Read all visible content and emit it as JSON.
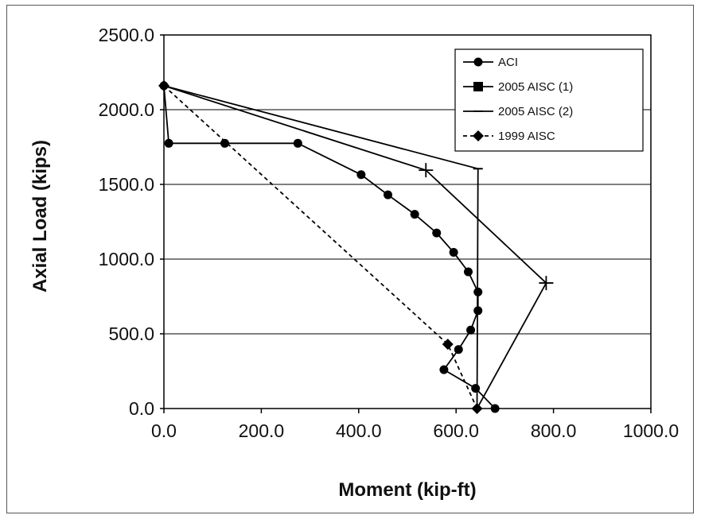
{
  "chart_data": {
    "type": "line",
    "xlabel": "Moment (kip-ft)",
    "ylabel": "Axial Load (kips)",
    "xlim": [
      0,
      1000
    ],
    "ylim": [
      0,
      2500
    ],
    "xticks": [
      "0.0",
      "200.0",
      "400.0",
      "600.0",
      "800.0",
      "1000.0"
    ],
    "yticks": [
      "0.0",
      "500.0",
      "1000.0",
      "1500.0",
      "2000.0",
      "2500.0"
    ],
    "grid": "horizontal",
    "legend_position": "top-right",
    "series": [
      {
        "name": "ACI",
        "color": "#000000",
        "line": "solid",
        "marker": "circle",
        "points": [
          [
            0,
            2160
          ],
          [
            10,
            1775
          ],
          [
            125,
            1775
          ],
          [
            275,
            1775
          ],
          [
            405,
            1565
          ],
          [
            460,
            1430
          ],
          [
            515,
            1300
          ],
          [
            560,
            1175
          ],
          [
            595,
            1045
          ],
          [
            625,
            915
          ],
          [
            645,
            780
          ],
          [
            645,
            655
          ],
          [
            630,
            525
          ],
          [
            605,
            395
          ],
          [
            575,
            260
          ],
          [
            640,
            135
          ],
          [
            680,
            0
          ]
        ]
      },
      {
        "name": "2005 AISC (1)",
        "color": "#000000",
        "line": "solid",
        "marker": "plus",
        "points": [
          [
            0,
            2160
          ],
          [
            538,
            1595
          ],
          [
            785,
            840
          ],
          [
            643,
            0
          ]
        ]
      },
      {
        "name": "2005 AISC (2)",
        "color": "#000000",
        "line": "solid",
        "marker": "dash",
        "points": [
          [
            0,
            2160
          ],
          [
            645,
            1605
          ],
          [
            643,
            0
          ]
        ]
      },
      {
        "name": "1999 AISC",
        "color": "#000000",
        "line": "dashed",
        "marker": "diamond",
        "points": [
          [
            0,
            2160
          ],
          [
            583,
            430
          ],
          [
            643,
            0
          ]
        ]
      }
    ]
  }
}
